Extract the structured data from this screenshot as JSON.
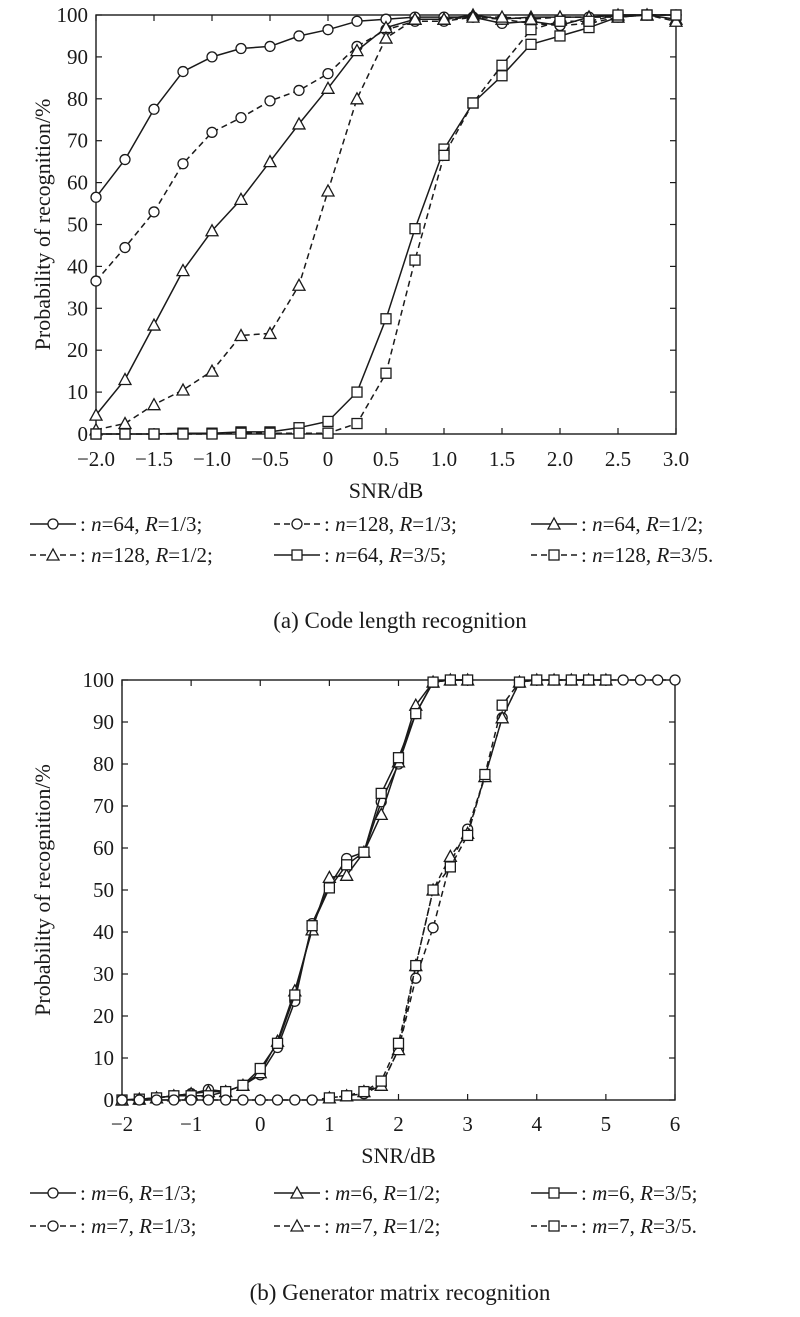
{
  "chart_data": [
    {
      "type": "line",
      "caption": "(a) Code length recognition",
      "xlabel": "SNR/dB",
      "ylabel": "Probability of recognition/%",
      "xlim": [
        -2.0,
        3.0
      ],
      "ylim": [
        0,
        100
      ],
      "xticks": [
        "−2.0",
        "−1.5",
        "−1.0",
        "−0.5",
        "0",
        "0.5",
        "1.0",
        "1.5",
        "2.0",
        "2.5",
        "3.0"
      ],
      "yticks": [
        "0",
        "10",
        "20",
        "30",
        "40",
        "50",
        "60",
        "70",
        "80",
        "90",
        "100"
      ],
      "grid": false,
      "legend_position": "below",
      "x": [
        -2.0,
        -1.75,
        -1.5,
        -1.25,
        -1.0,
        -0.75,
        -0.5,
        -0.25,
        0.0,
        0.25,
        0.5,
        0.75,
        1.0,
        1.25,
        1.5,
        1.75,
        2.0,
        2.25,
        2.5,
        2.75,
        3.0
      ],
      "series": [
        {
          "dash": "solid",
          "marker": "circle",
          "legend_prefix": ": ",
          "legend_var": "n",
          "legend_mid": "=64, ",
          "legend_rate_var": "R",
          "legend_suffix": "=1/3;",
          "values": [
            56.5,
            65.5,
            77.5,
            86.5,
            90,
            92,
            92.5,
            95,
            96.5,
            98.5,
            99,
            99.5,
            99.5,
            99.5,
            98,
            98.5,
            97.5,
            99.5,
            100,
            100,
            100
          ]
        },
        {
          "dash": "dashed",
          "marker": "circle",
          "legend_prefix": ": ",
          "legend_var": "n",
          "legend_mid": "=128, ",
          "legend_rate_var": "R",
          "legend_suffix": "=1/3;",
          "values": [
            36.5,
            44.5,
            53,
            64.5,
            72,
            75.5,
            79.5,
            82,
            86,
            92.5,
            96.5,
            98.5,
            98.5,
            99.5,
            99,
            98,
            97.5,
            98,
            99.5,
            100,
            100
          ]
        },
        {
          "dash": "solid",
          "marker": "triangle",
          "legend_prefix": ": ",
          "legend_var": "n",
          "legend_mid": "=64, ",
          "legend_rate_var": "R",
          "legend_suffix": "=1/2;",
          "values": [
            4.5,
            13,
            26,
            39,
            48.5,
            56,
            65,
            74,
            82.5,
            91.5,
            97,
            99,
            99,
            100,
            99,
            99.5,
            99.5,
            99.5,
            100,
            100,
            99
          ]
        },
        {
          "dash": "dashed",
          "marker": "triangle",
          "legend_prefix": ": ",
          "legend_var": "n",
          "legend_mid": "=128, ",
          "legend_rate_var": "R",
          "legend_suffix": "=1/2;",
          "values": [
            1,
            2.5,
            7,
            10.5,
            15,
            23.5,
            24,
            35.5,
            58,
            80,
            94.5,
            99,
            99,
            99.5,
            99.5,
            99,
            99.5,
            99.5,
            99.5,
            100,
            98.5
          ]
        },
        {
          "dash": "solid",
          "marker": "square",
          "legend_prefix": ": ",
          "legend_var": "n",
          "legend_mid": "=64, ",
          "legend_rate_var": "R",
          "legend_suffix": "=3/5;",
          "values": [
            0,
            0,
            0,
            0.2,
            0.2,
            0.5,
            0.5,
            1.5,
            3,
            10,
            27.5,
            49,
            68,
            79,
            85.5,
            93,
            95,
            97,
            99.5,
            100,
            100
          ]
        },
        {
          "dash": "dashed",
          "marker": "square",
          "legend_prefix": ": ",
          "legend_var": "n",
          "legend_mid": "=128, ",
          "legend_rate_var": "R",
          "legend_suffix": "=3/5.",
          "values": [
            0,
            0,
            0,
            0,
            0,
            0.2,
            0.2,
            0.2,
            0.2,
            2.5,
            14.5,
            41.5,
            66.5,
            79,
            88,
            96.5,
            98.5,
            98.5,
            100,
            100,
            100
          ]
        }
      ]
    },
    {
      "type": "line",
      "caption": "(b) Generator matrix recognition",
      "xlabel": "SNR/dB",
      "ylabel": "Probability of recognition/%",
      "xlim": [
        -2,
        6
      ],
      "ylim": [
        0,
        100
      ],
      "xticks": [
        "−2",
        "−1",
        "0",
        "1",
        "2",
        "3",
        "4",
        "5",
        "6"
      ],
      "yticks": [
        "0",
        "10",
        "20",
        "30",
        "40",
        "50",
        "60",
        "70",
        "80",
        "90",
        "100"
      ],
      "grid": false,
      "legend_position": "below",
      "series": [
        {
          "dash": "solid",
          "marker": "circle",
          "legend_prefix": ": ",
          "legend_var": "m",
          "legend_mid": "=6, ",
          "legend_rate_var": "R",
          "legend_suffix": "=1/3;",
          "x": [
            -2,
            -1.75,
            -1.5,
            -1.25,
            -1,
            -0.75,
            -0.5,
            -0.25,
            0,
            0.25,
            0.5,
            0.75,
            1,
            1.25,
            1.5,
            1.75,
            2,
            2.25,
            2.5,
            2.75,
            3
          ],
          "values": [
            0,
            0.2,
            0.5,
            1,
            1.5,
            2.5,
            2,
            3.5,
            6,
            12.5,
            23.5,
            42,
            51,
            57.5,
            59,
            71,
            80,
            92,
            99.5,
            100,
            100
          ]
        },
        {
          "dash": "solid",
          "marker": "triangle",
          "legend_prefix": ": ",
          "legend_var": "m",
          "legend_mid": "=6, ",
          "legend_rate_var": "R",
          "legend_suffix": "=1/2;",
          "x": [
            -2,
            -1.75,
            -1.5,
            -1.25,
            -1,
            -0.75,
            -0.5,
            -0.25,
            0,
            0.25,
            0.5,
            0.75,
            1,
            1.25,
            1.5,
            1.75,
            2,
            2.25,
            2.5,
            2.75,
            3
          ],
          "values": [
            0,
            0.2,
            0.5,
            1,
            1.5,
            2,
            2,
            3.5,
            6.5,
            14,
            26,
            40.5,
            53,
            53.5,
            59,
            68,
            80.5,
            94,
            99.5,
            100,
            100
          ]
        },
        {
          "dash": "solid",
          "marker": "square",
          "legend_prefix": ": ",
          "legend_var": "m",
          "legend_mid": "=6, ",
          "legend_rate_var": "R",
          "legend_suffix": "=3/5;",
          "x": [
            -2,
            -1.75,
            -1.5,
            -1.25,
            -1,
            -0.75,
            -0.5,
            -0.25,
            0,
            0.25,
            0.5,
            0.75,
            1,
            1.25,
            1.5,
            1.75,
            2,
            2.25,
            2.5,
            2.75,
            3
          ],
          "values": [
            0,
            0.2,
            0.5,
            1,
            1,
            1,
            2,
            3.5,
            7.5,
            13.5,
            25,
            41.5,
            50.5,
            56,
            59,
            73,
            81.5,
            92,
            99.5,
            100,
            100
          ]
        },
        {
          "dash": "dashed",
          "marker": "circle",
          "legend_prefix": ": ",
          "legend_var": "m",
          "legend_mid": "=7, ",
          "legend_rate_var": "R",
          "legend_suffix": "=1/3;",
          "x": [
            -2,
            -1.75,
            -1.5,
            -1.25,
            -1,
            -0.75,
            -0.5,
            -0.25,
            0,
            0.25,
            0.5,
            0.75,
            1,
            1.25,
            1.5,
            1.75,
            2,
            2.25,
            2.5,
            2.75,
            3,
            3.25,
            3.5,
            3.75,
            4,
            4.25,
            4.5,
            4.75,
            5,
            5.25,
            5.5,
            5.75,
            6
          ],
          "values": [
            0,
            0,
            0,
            0,
            0,
            0,
            0,
            0,
            0,
            0,
            0,
            0,
            0.5,
            1,
            1.5,
            3.5,
            12,
            29,
            41,
            56.5,
            64.5,
            77,
            91,
            99.5,
            100,
            100,
            100,
            100,
            100,
            100,
            100,
            100,
            100
          ]
        },
        {
          "dash": "dashed",
          "marker": "triangle",
          "legend_prefix": ": ",
          "legend_var": "m",
          "legend_mid": "=7, ",
          "legend_rate_var": "R",
          "legend_suffix": "=1/2;",
          "x": [
            1,
            1.25,
            1.5,
            1.75,
            2,
            2.25,
            2.5,
            2.75,
            3,
            3.25,
            3.5,
            3.75,
            4,
            4.25,
            4.5,
            4.75,
            5
          ],
          "values": [
            0.5,
            1,
            2,
            3.5,
            12,
            32,
            50,
            58,
            63.5,
            77,
            91,
            99.5,
            100,
            100,
            100,
            100,
            100
          ]
        },
        {
          "dash": "dashed",
          "marker": "square",
          "legend_prefix": ": ",
          "legend_var": "m",
          "legend_mid": "=7, ",
          "legend_rate_var": "R",
          "legend_suffix": "=3/5.",
          "x": [
            1,
            1.25,
            1.5,
            1.75,
            2,
            2.25,
            2.5,
            2.75,
            3,
            3.25,
            3.5,
            3.75,
            4,
            4.25,
            4.5,
            4.75,
            5
          ],
          "values": [
            0.5,
            1,
            2,
            4.5,
            13.5,
            32,
            50,
            55.5,
            63,
            77.5,
            94,
            99.5,
            100,
            100,
            100,
            100,
            100
          ]
        }
      ]
    }
  ]
}
